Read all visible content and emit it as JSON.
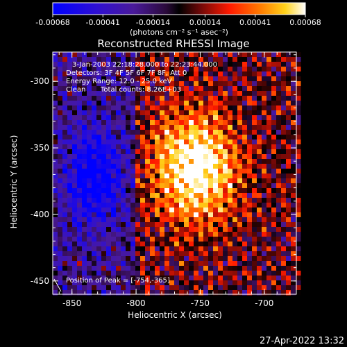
{
  "colorbar": {
    "tick_labels": [
      "-0.00068",
      "-0.00041",
      "-0.00014",
      "0.00014",
      "0.00041",
      "0.00068"
    ],
    "unit_label": "(photons cm⁻² s⁻¹ asec⁻²)"
  },
  "title": "Reconstructed RHESSI Image",
  "info": {
    "time_range": "3-Jan-2003 22:18:28.000 to 22:23:44.000",
    "detectors": "Detectors: 3F 4F 5F 6F 7F 8F, Att 0",
    "energy": "Energy Range: 12.0 - 25.0 keV",
    "algorithm": "Clean",
    "counts": "Total counts: 8.26E+03",
    "peak": "Position of Peak = [-754,-365]"
  },
  "axes": {
    "xlabel": "Heliocentric X (arcsec)",
    "ylabel": "Heliocentric Y (arcsec)",
    "xticks": [
      "-850",
      "-800",
      "-750",
      "-700"
    ],
    "yticks": [
      "-300",
      "-350",
      "-400",
      "-450"
    ],
    "xlim": [
      -865,
      -675
    ],
    "ylim": [
      -460,
      -278
    ]
  },
  "peak": {
    "x": -754,
    "y": -365
  },
  "timestamp": "27-Apr-2022 13:32",
  "colors": {
    "background": "#000000",
    "text": "#ffffff"
  }
}
